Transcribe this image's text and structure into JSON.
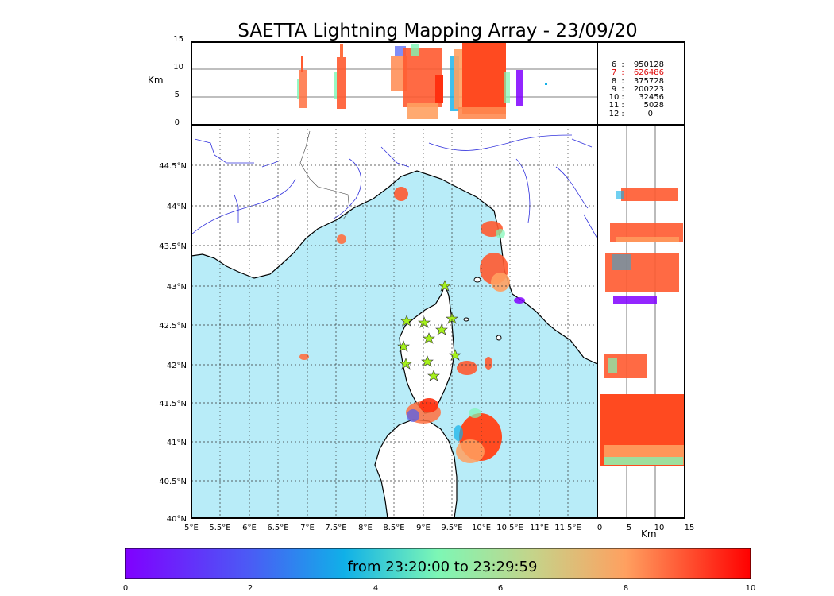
{
  "title": "SAETTA Lightning Mapping Array - 23/09/20",
  "altitude_panel": {
    "unit_label": "Km",
    "y_ticks": [
      "15",
      "10",
      "5",
      "0"
    ]
  },
  "station_counts": [
    {
      "stations": "6",
      "count": "950128",
      "highlight": false
    },
    {
      "stations": "7",
      "count": "626486",
      "highlight": true
    },
    {
      "stations": "8",
      "count": "375728",
      "highlight": false
    },
    {
      "stations": "9",
      "count": "200223",
      "highlight": false
    },
    {
      "stations": "10",
      "count": "32456",
      "highlight": false
    },
    {
      "stations": "11",
      "count": "5028",
      "highlight": false
    },
    {
      "stations": "12",
      "count": "0",
      "highlight": false
    }
  ],
  "map": {
    "lat_labels": [
      "44.5°N",
      "44°N",
      "43.5°N",
      "43°N",
      "42.5°N",
      "42°N",
      "41.5°N",
      "41°N",
      "40.5°N",
      "40°N"
    ],
    "lon_labels": [
      "5°E",
      "5.5°E",
      "6°E",
      "6.5°E",
      "7°E",
      "7.5°E",
      "8°E",
      "8.5°E",
      "9°E",
      "9.5°E",
      "10°E",
      "10.5°E",
      "11°E",
      "11.5°E"
    ],
    "sea_color": "#b8ecf8",
    "land_color": "#ffffff",
    "river_color": "#3333dd",
    "stations_marker": "star",
    "station_color": "#a6f21b"
  },
  "side_panel": {
    "x_ticks": [
      "0",
      "5",
      "10",
      "15"
    ],
    "unit_label": "Km"
  },
  "colorbar": {
    "label": "from 23:20:00 to 23:29:59",
    "ticks": [
      "0",
      "2",
      "4",
      "6",
      "8",
      "10"
    ],
    "colormap": "rainbow"
  }
}
